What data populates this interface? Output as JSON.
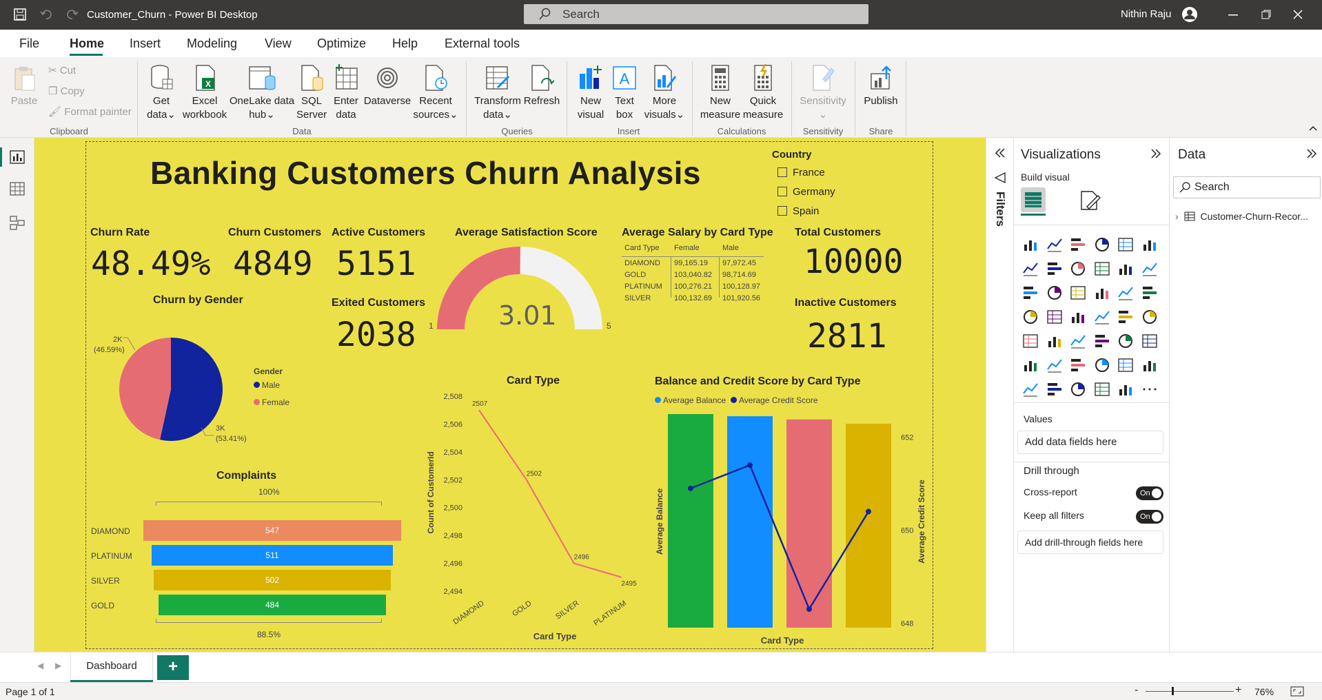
{
  "titlebar": {
    "doc_title": "Customer_Churn - Power BI Desktop",
    "search_placeholder": "Search",
    "user": "Nithin Raju"
  },
  "menu": [
    "File",
    "Home",
    "Insert",
    "Modeling",
    "View",
    "Optimize",
    "Help",
    "External tools"
  ],
  "ribbon": {
    "clipboard": {
      "paste": "Paste",
      "cut": "Cut",
      "copy": "Copy",
      "format_painter": "Format painter",
      "group": "Clipboard"
    },
    "data": {
      "get_data": [
        "Get",
        "data"
      ],
      "excel": [
        "Excel",
        "workbook"
      ],
      "onelake": [
        "OneLake data",
        "hub"
      ],
      "sql": [
        "SQL",
        "Server"
      ],
      "enter": [
        "Enter",
        "data"
      ],
      "dataverse": "Dataverse",
      "recent": [
        "Recent",
        "sources"
      ],
      "group": "Data"
    },
    "queries": {
      "transform": [
        "Transform",
        "data"
      ],
      "refresh": "Refresh",
      "group": "Queries"
    },
    "insert": {
      "new_visual": [
        "New",
        "visual"
      ],
      "text_box": [
        "Text",
        "box"
      ],
      "more_visuals": [
        "More",
        "visuals"
      ],
      "group": "Insert"
    },
    "calculations": {
      "new_measure": [
        "New",
        "measure"
      ],
      "quick_measure": [
        "Quick",
        "measure"
      ],
      "group": "Calculations"
    },
    "sensitivity": {
      "label": "Sensitivity",
      "group": "Sensitivity"
    },
    "share": {
      "publish": "Publish",
      "group": "Share"
    }
  },
  "report": {
    "title": "Banking Customers Churn Analysis",
    "country_slicer": {
      "title": "Country",
      "items": [
        "France",
        "Germany",
        "Spain"
      ]
    },
    "kpis": {
      "churn_rate": {
        "label": "Churn Rate",
        "value": "48.49%"
      },
      "churn_customers": {
        "label": "Churn Customers",
        "value": "4849"
      },
      "active_customers": {
        "label": "Active Customers",
        "value": "5151"
      },
      "exited_customers": {
        "label": "Exited Customers",
        "value": "2038"
      },
      "total_customers": {
        "label": "Total Customers",
        "value": "10000"
      },
      "inactive_customers": {
        "label": "Inactive Customers",
        "value": "2811"
      }
    },
    "gauge": {
      "title": "Average Satisfaction Score",
      "value": "3.01",
      "min": "1",
      "max": "5",
      "fraction": 0.5025
    },
    "salary_table": {
      "title": "Average Salary by Card Type",
      "headers": [
        "Card Type",
        "Female",
        "Male"
      ],
      "rows": [
        [
          "DIAMOND",
          "99,165.19",
          "97,972.45"
        ],
        [
          "GOLD",
          "103,040.82",
          "98,714.69"
        ],
        [
          "PLATINUM",
          "100,276.21",
          "100,128.97"
        ],
        [
          "SILVER",
          "100,132.69",
          "101,920.56"
        ]
      ]
    },
    "gender_pie": {
      "title": "Churn by Gender",
      "legend_title": "Gender",
      "legend": [
        "Male",
        "Female"
      ],
      "female_label": [
        "2K",
        "(46.59%)"
      ],
      "male_label": [
        "3K",
        "(53.41%)"
      ]
    },
    "complaints": {
      "title": "Complaints",
      "top": "100%",
      "bottom": "88.5%"
    },
    "card_line": {
      "title": "Card Type",
      "xlabel": "Card Type",
      "ylabel": "Count of CustomerId",
      "yticks": [
        "2,508",
        "2,506",
        "2,504",
        "2,502",
        "2,500",
        "2,498",
        "2,496",
        "2,494"
      ]
    },
    "combo": {
      "title": "Balance and Credit Score by Card Type",
      "legend": [
        "Average Balance",
        "Average Credit Score"
      ],
      "xlabel": "Card Type",
      "ylabel_left": "Average Balance",
      "ylabel_right": "Average Credit Score",
      "right_ticks": [
        "652",
        "650",
        "648"
      ]
    }
  },
  "chart_data": [
    {
      "type": "pie",
      "title": "Churn by Gender",
      "categories": [
        "Male",
        "Female"
      ],
      "values": [
        53.41,
        46.59
      ],
      "labels": [
        "3K",
        "2K"
      ],
      "colors": [
        "#12239e",
        "#e66c74"
      ]
    },
    {
      "type": "bar",
      "title": "Complaints",
      "categories": [
        "DIAMOND",
        "PLATINUM",
        "SILVER",
        "GOLD"
      ],
      "values": [
        547,
        511,
        502,
        484
      ],
      "colors": [
        "#eb895f",
        "#118dff",
        "#d9b300",
        "#1aab40"
      ]
    },
    {
      "type": "line",
      "title": "Card Type",
      "categories": [
        "DIAMOND",
        "GOLD",
        "SILVER",
        "PLATINUM"
      ],
      "values": [
        2507,
        2502,
        2496,
        2495
      ],
      "ylim": [
        2494,
        2508
      ],
      "xlabel": "Card Type",
      "ylabel": "Count of CustomerId",
      "color": "#e66c74"
    },
    {
      "type": "bar",
      "title": "Balance and Credit Score by Card Type",
      "categories": [
        "DIAMOND",
        "GOLD",
        "PLATINUM",
        "SILVER"
      ],
      "series": [
        {
          "name": "Average Balance",
          "values": [
            1.0,
            0.99,
            0.975,
            0.955
          ]
        },
        {
          "name": "Average Credit Score",
          "values": [
            650.9,
            651.4,
            648.3,
            650.4
          ]
        }
      ],
      "bar_colors": [
        "#1aab40",
        "#118dff",
        "#e66c74",
        "#d9b300"
      ],
      "y2lim": [
        647.9,
        652.5
      ]
    }
  ],
  "panes": {
    "filters": "Filters",
    "visualizations": {
      "title": "Visualizations",
      "build": "Build visual",
      "values": "Values",
      "add_data": "Add data fields here",
      "drill": "Drill through",
      "cross": "Cross-report",
      "keep": "Keep all filters",
      "toggle_on": "On",
      "add_drill": "Add drill-through fields here"
    },
    "data": {
      "title": "Data",
      "search": "Search",
      "table": "Customer-Churn-Recor..."
    }
  },
  "tabs": {
    "page": "Dashboard",
    "add": "+"
  },
  "status": {
    "page": "Page 1 of 1",
    "zoom": "76%"
  },
  "colors": {
    "canvas": "#ece049",
    "accent": "#117865",
    "titlebar": "#3b3a39"
  }
}
